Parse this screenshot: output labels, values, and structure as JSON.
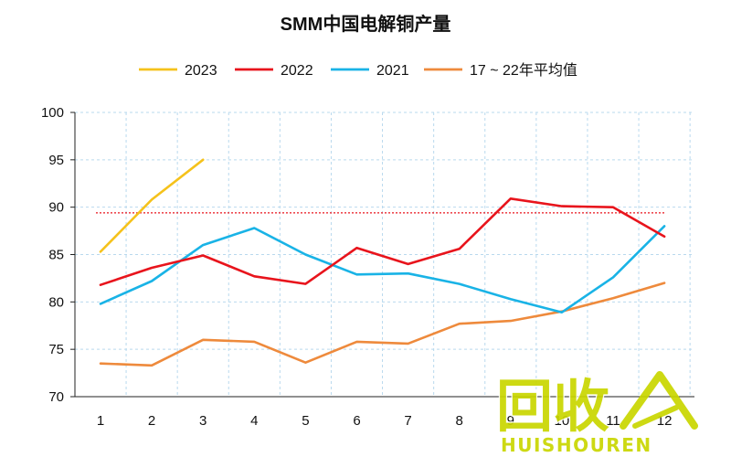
{
  "chart_data": {
    "type": "line",
    "title": "SMM中国电解铜产量",
    "xlabel": "",
    "ylabel": "",
    "categories": [
      "1",
      "2",
      "3",
      "4",
      "5",
      "6",
      "7",
      "8",
      "9",
      "10",
      "11",
      "12"
    ],
    "ylim": [
      70,
      100
    ],
    "yticks": [
      "70",
      "75",
      "80",
      "85",
      "90",
      "95",
      "100"
    ],
    "grid": true,
    "legend_position": "top",
    "series": [
      {
        "name": "2023",
        "color": "#f5c21b",
        "values": [
          85.3,
          90.8,
          95.0,
          null,
          null,
          null,
          null,
          null,
          null,
          null,
          null,
          null
        ]
      },
      {
        "name": "2022",
        "color": "#e8141c",
        "values": [
          81.8,
          83.6,
          84.9,
          82.7,
          81.9,
          85.7,
          84.0,
          85.6,
          90.9,
          90.1,
          90.0,
          86.9
        ]
      },
      {
        "name": "2021",
        "color": "#19b3e6",
        "values": [
          79.8,
          82.2,
          86.0,
          87.8,
          85.0,
          82.9,
          83.0,
          81.9,
          80.3,
          78.9,
          82.6,
          88.0
        ]
      },
      {
        "name": "17 ~ 22年平均值",
        "color": "#ee8a3c",
        "values": [
          73.5,
          73.3,
          76.0,
          75.8,
          73.6,
          75.8,
          75.6,
          77.7,
          78.0,
          79.0,
          80.4,
          82.0
        ]
      }
    ],
    "reference_line": {
      "value": 89.4,
      "color": "#e8141c"
    }
  },
  "watermark": {
    "cn": "回收",
    "en": "HUISHOUREN",
    "color": "#c9d600"
  }
}
